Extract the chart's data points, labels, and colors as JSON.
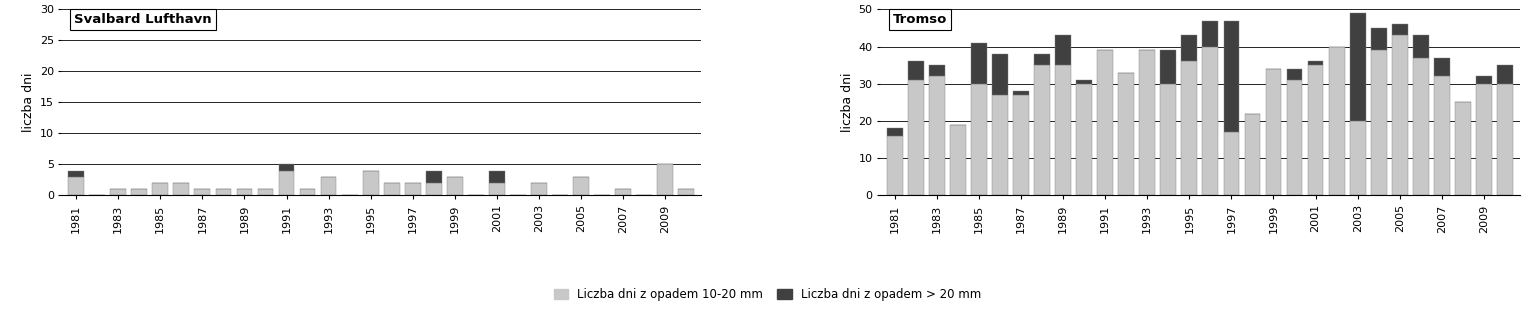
{
  "years": [
    1981,
    1982,
    1983,
    1984,
    1985,
    1986,
    1987,
    1988,
    1989,
    1990,
    1991,
    1992,
    1993,
    1994,
    1995,
    1996,
    1997,
    1998,
    1999,
    2000,
    2001,
    2002,
    2003,
    2004,
    2005,
    2006,
    2007,
    2008,
    2009,
    2010
  ],
  "svalbard_10_20": [
    3,
    0,
    1,
    1,
    2,
    2,
    1,
    1,
    1,
    1,
    4,
    1,
    3,
    0,
    4,
    2,
    2,
    2,
    3,
    0,
    2,
    0,
    2,
    0,
    3,
    0,
    1,
    0,
    5,
    1
  ],
  "svalbard_gt20": [
    1,
    0,
    0,
    0,
    0,
    0,
    0,
    0,
    0,
    0,
    1,
    0,
    0,
    0,
    0,
    0,
    0,
    2,
    0,
    0,
    2,
    0,
    0,
    0,
    0,
    0,
    0,
    0,
    0,
    0
  ],
  "tromso_10_20": [
    16,
    31,
    32,
    19,
    30,
    27,
    27,
    35,
    35,
    30,
    39,
    33,
    39,
    30,
    36,
    40,
    17,
    22,
    34,
    31,
    35,
    40,
    20,
    39,
    43,
    37,
    32,
    25,
    30,
    30
  ],
  "tromso_gt20": [
    2,
    5,
    3,
    0,
    11,
    11,
    1,
    3,
    8,
    1,
    0,
    0,
    0,
    9,
    7,
    7,
    30,
    0,
    0,
    3,
    1,
    0,
    29,
    6,
    3,
    6,
    5,
    0,
    2,
    5
  ],
  "svalbard_title": "Svalbard Lufthavn",
  "tromso_title": "Tromso",
  "ylabel": "liczba dni",
  "svalbard_ylim": [
    0,
    30
  ],
  "svalbard_yticks": [
    0,
    5,
    10,
    15,
    20,
    25,
    30
  ],
  "tromso_ylim": [
    0,
    50
  ],
  "tromso_yticks": [
    0,
    10,
    20,
    30,
    40,
    50
  ],
  "color_10_20": "#c8c8c8",
  "color_gt20": "#404040",
  "legend_label_10_20": "Liczba dni z opadem 10-20 mm",
  "legend_label_gt20": "Liczba dni z opadem > 20 mm",
  "background_color": "#ffffff",
  "tick_years": [
    1981,
    1983,
    1985,
    1987,
    1989,
    1991,
    1993,
    1995,
    1997,
    1999,
    2001,
    2003,
    2005,
    2007,
    2009
  ]
}
